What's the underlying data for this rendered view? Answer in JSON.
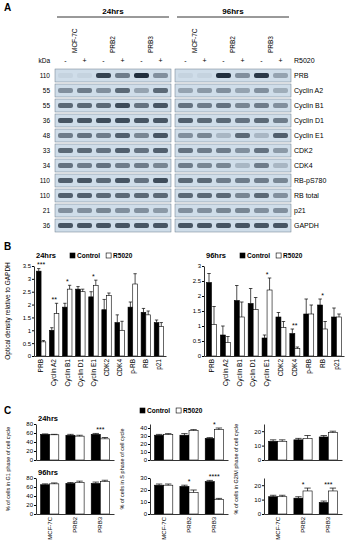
{
  "panel_labels": [
    "A",
    "B",
    "C"
  ],
  "blot": {
    "times": [
      "24hrs",
      "96hrs"
    ],
    "cell_lines": [
      "MCF-7C",
      "PRB2",
      "PRB3"
    ],
    "treatment_label": "R5020",
    "treatment_signs": [
      "-",
      "+"
    ],
    "kda_label": "kDa",
    "rows": [
      {
        "kda": 110,
        "protein": "PRB",
        "intensity": [
          0.05,
          0.05,
          0.8,
          0.5,
          0.9,
          0.4,
          0.05,
          0.05,
          0.9,
          0.4,
          0.85,
          0.3
        ]
      },
      {
        "kda": 55,
        "protein": "Cyclin A2",
        "intensity": [
          0.4,
          0.5,
          0.4,
          0.6,
          0.3,
          0.6,
          0.3,
          0.35,
          0.4,
          0.3,
          0.4,
          0.25
        ]
      },
      {
        "kda": 55,
        "protein": "Cyclin B1",
        "intensity": [
          0.6,
          0.6,
          0.6,
          0.75,
          0.55,
          0.7,
          0.55,
          0.5,
          0.55,
          0.45,
          0.5,
          0.4
        ]
      },
      {
        "kda": 36,
        "protein": "Cyclin D1",
        "intensity": [
          0.7,
          0.7,
          0.75,
          0.75,
          0.7,
          0.7,
          0.65,
          0.6,
          0.6,
          0.55,
          0.6,
          0.5
        ]
      },
      {
        "kda": 48,
        "protein": "Cyclin E1",
        "intensity": [
          0.5,
          0.55,
          0.5,
          0.65,
          0.45,
          0.7,
          0.4,
          0.45,
          0.2,
          0.6,
          0.2,
          0.65
        ]
      },
      {
        "kda": 33,
        "protein": "CDK2",
        "intensity": [
          0.6,
          0.6,
          0.55,
          0.65,
          0.55,
          0.65,
          0.55,
          0.5,
          0.5,
          0.4,
          0.55,
          0.35
        ]
      },
      {
        "kda": 34,
        "protein": "CDK4",
        "intensity": [
          0.55,
          0.5,
          0.55,
          0.5,
          0.5,
          0.45,
          0.5,
          0.45,
          0.45,
          0.2,
          0.5,
          0.2
        ]
      },
      {
        "kda": 110,
        "protein": "RB-pS780",
        "intensity": [
          0.65,
          0.7,
          0.6,
          0.7,
          0.55,
          0.75,
          0.6,
          0.6,
          0.5,
          0.5,
          0.5,
          0.45
        ]
      },
      {
        "kda": 110,
        "protein": "RB total",
        "intensity": [
          0.65,
          0.65,
          0.6,
          0.6,
          0.6,
          0.6,
          0.6,
          0.6,
          0.6,
          0.45,
          0.6,
          0.4
        ]
      },
      {
        "kda": 21,
        "protein": "p21",
        "intensity": [
          0.4,
          0.4,
          0.45,
          0.4,
          0.4,
          0.35,
          0.4,
          0.4,
          0.45,
          0.45,
          0.4,
          0.4
        ]
      },
      {
        "kda": 36,
        "protein": "GAPDH",
        "intensity": [
          0.7,
          0.7,
          0.7,
          0.7,
          0.7,
          0.7,
          0.7,
          0.7,
          0.7,
          0.7,
          0.7,
          0.7
        ]
      }
    ]
  },
  "chart_data": [
    {
      "type": "bar",
      "title": "24hrs",
      "y_label": "Optical density relative to GAPDH",
      "legend": "top",
      "categories": [
        "PRB",
        "Cyclin A2",
        "Cyclin B1",
        "Cyclin D1",
        "Cyclin E1",
        "CDK2",
        "CDK4",
        "p-RB",
        "RB",
        "p21"
      ],
      "series": [
        {
          "name": "Control",
          "color": "#000000",
          "values": [
            3.3,
            1.0,
            1.9,
            2.6,
            2.3,
            1.8,
            1.3,
            1.9,
            1.7,
            1.3
          ],
          "errors": [
            0.1,
            0.1,
            0.15,
            0.1,
            0.2,
            0.4,
            0.3,
            0.2,
            0.15,
            0.1
          ]
        },
        {
          "name": "R5020",
          "color": "#ffffff",
          "values": [
            0.55,
            1.65,
            2.6,
            2.5,
            2.75,
            2.35,
            1.0,
            2.8,
            1.6,
            1.15
          ],
          "errors": [
            0.05,
            0.4,
            0.15,
            0.1,
            0.2,
            0.1,
            0.35,
            0.4,
            0.15,
            0.15
          ]
        }
      ],
      "ylim": [
        0,
        3.5
      ],
      "yticks": [
        0,
        0.5,
        1,
        1.5,
        2,
        2.5,
        3,
        3.5
      ],
      "annotations": [
        {
          "category": "PRB",
          "text": "***"
        },
        {
          "category": "Cyclin A2",
          "text": "**"
        },
        {
          "category": "Cyclin B1",
          "text": "*"
        },
        {
          "category": "Cyclin E1",
          "text": "*"
        }
      ]
    },
    {
      "type": "bar",
      "title": "96hrs",
      "legend": "top",
      "categories": [
        "PRB",
        "Cyclin A2",
        "Cyclin B1",
        "Cyclin D1",
        "Cyclin E1",
        "CDK2",
        "CDK4",
        "p-RB",
        "RB",
        "p21"
      ],
      "series": [
        {
          "name": "Control",
          "color": "#000000",
          "values": [
            2.45,
            0.7,
            1.85,
            1.75,
            0.6,
            1.3,
            0.75,
            1.4,
            1.7,
            1.3
          ],
          "errors": [
            0.3,
            0.3,
            0.5,
            0.5,
            0.1,
            0.15,
            0.15,
            0.5,
            0.2,
            0.3
          ]
        },
        {
          "name": "R5020",
          "color": "#ffffff",
          "values": [
            1.05,
            0.45,
            1.3,
            1.55,
            2.2,
            0.95,
            0.25,
            1.4,
            0.9,
            1.3
          ],
          "errors": [
            0.6,
            0.2,
            0.5,
            0.4,
            0.4,
            0.2,
            0.05,
            0.3,
            0.25,
            0.1
          ]
        }
      ],
      "ylim": [
        0,
        3
      ],
      "yticks": [
        0,
        0.5,
        1,
        1.5,
        2,
        2.5,
        3
      ],
      "annotations": [
        {
          "category": "Cyclin E1",
          "text": "*"
        },
        {
          "category": "CDK4",
          "text": "**"
        },
        {
          "category": "RB",
          "text": "*"
        }
      ]
    },
    {
      "type": "bar",
      "title": "24hrs",
      "y_label": "% of cells in G1 phase of cell cycle",
      "legend": "top",
      "tick_labels": "y",
      "categories": [
        "MCF-7C",
        "PRB2",
        "PRB3"
      ],
      "series": [
        {
          "name": "Control",
          "color": "#000000",
          "values": [
            57,
            55,
            57
          ],
          "errors": [
            1,
            2,
            2
          ]
        },
        {
          "name": "R5020",
          "color": "#ffffff",
          "values": [
            56,
            53,
            47
          ],
          "errors": [
            1,
            2,
            3
          ]
        }
      ],
      "ylim": [
        0,
        80
      ],
      "yticks": [
        0,
        20,
        40,
        60,
        80
      ],
      "annotations": [
        {
          "category": "PRB3",
          "text": "***"
        }
      ]
    },
    {
      "type": "bar",
      "y_label": "% of cells in S phase of cell cycle",
      "tick_labels": "y",
      "categories": [
        "MCF-7C",
        "PRB2",
        "PRB3"
      ],
      "series": [
        {
          "name": "Control",
          "color": "#000000",
          "values": [
            31,
            31,
            27
          ],
          "errors": [
            1,
            2,
            1
          ]
        },
        {
          "name": "R5020",
          "color": "#ffffff",
          "values": [
            32,
            37,
            38
          ],
          "errors": [
            1,
            1,
            2
          ]
        }
      ],
      "ylim": [
        0,
        45
      ],
      "yticks": [
        0,
        10,
        20,
        30,
        40
      ],
      "annotations": [
        {
          "category": "PRB3",
          "text": "*"
        }
      ]
    },
    {
      "type": "bar",
      "y_label": "% of cells in G2/M phase of cell cycle",
      "tick_labels": "y",
      "categories": [
        "MCF-7C",
        "PRB2",
        "PRB3"
      ],
      "series": [
        {
          "name": "Control",
          "color": "#000000",
          "values": [
            13,
            14,
            16
          ],
          "errors": [
            1,
            1,
            1
          ]
        },
        {
          "name": "R5020",
          "color": "#ffffff",
          "values": [
            13,
            15,
            19
          ],
          "errors": [
            1,
            2,
            1
          ]
        }
      ],
      "ylim": [
        0,
        25
      ],
      "yticks": [
        0,
        10,
        20
      ]
    },
    {
      "type": "bar",
      "title": "96hrs",
      "categories": [
        "MCF-7C",
        "PRB2",
        "PRB3"
      ],
      "series": [
        {
          "name": "Control",
          "color": "#000000",
          "values": [
            65,
            68,
            68
          ],
          "errors": [
            2,
            2,
            3
          ]
        },
        {
          "name": "R5020",
          "color": "#ffffff",
          "values": [
            67,
            70,
            72
          ],
          "errors": [
            2,
            3,
            3
          ]
        }
      ],
      "ylim": [
        0,
        80
      ],
      "yticks": [
        0,
        20,
        40,
        60,
        80
      ]
    },
    {
      "type": "bar",
      "categories": [
        "MCF-7C",
        "PRB2",
        "PRB3"
      ],
      "series": [
        {
          "name": "Control",
          "color": "#000000",
          "values": [
            24,
            23,
            27
          ],
          "errors": [
            1,
            1,
            1
          ]
        },
        {
          "name": "R5020",
          "color": "#ffffff",
          "values": [
            24,
            18,
            12
          ],
          "errors": [
            1,
            2,
            1
          ]
        }
      ],
      "ylim": [
        0,
        30
      ],
      "yticks": [
        0,
        10,
        20,
        30
      ],
      "annotations": [
        {
          "category": "PRB2",
          "text": "*"
        },
        {
          "category": "PRB3",
          "text": "****"
        }
      ]
    },
    {
      "type": "bar",
      "categories": [
        "MCF-7C",
        "PRB2",
        "PRB3"
      ],
      "series": [
        {
          "name": "Control",
          "color": "#000000",
          "values": [
            12,
            11,
            8
          ],
          "errors": [
            1,
            1,
            1
          ]
        },
        {
          "name": "R5020",
          "color": "#ffffff",
          "values": [
            12,
            16,
            16
          ],
          "errors": [
            1,
            2,
            2
          ]
        }
      ],
      "ylim": [
        0,
        25
      ],
      "yticks": [
        0,
        10,
        20
      ],
      "annotations": [
        {
          "category": "PRB2",
          "text": "*"
        },
        {
          "category": "PRB3",
          "text": "***"
        }
      ]
    }
  ]
}
